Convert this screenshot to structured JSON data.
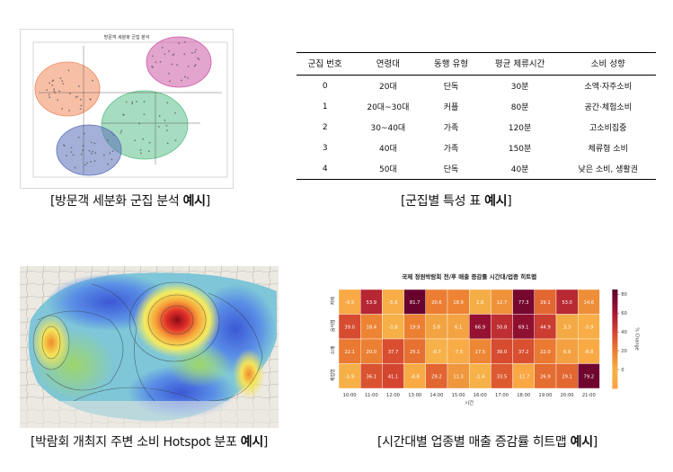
{
  "captions": {
    "scatter": {
      "text": "[방문객 세분화 군집 분석 ",
      "bold": "예시",
      "end": "]"
    },
    "table": {
      "text": "[군집별 특성 표 ",
      "bold": "예시",
      "end": "]"
    },
    "map": {
      "text": "[박람회 개최지 주변 소비 Hotspot 분포 ",
      "bold": "예시",
      "end": "]"
    },
    "heatmap": {
      "text": "[시간대별 업종별 매출 증감률 히트맵 ",
      "bold": "예시",
      "end": "]"
    }
  },
  "scatter_title": "방문객 세분화 군집 분석",
  "cluster_table": {
    "headers": [
      "군집 번호",
      "연령대",
      "동행 유형",
      "평균 체류시간",
      "소비 성향"
    ],
    "rows": [
      [
        "0",
        "20대",
        "단독",
        "30분",
        "소액·자주소비"
      ],
      [
        "1",
        "20대~30대",
        "커플",
        "80분",
        "공간·체험소비"
      ],
      [
        "2",
        "30~40대",
        "가족",
        "120분",
        "고소비집중"
      ],
      [
        "3",
        "40대",
        "가족",
        "150분",
        "체류형 소비"
      ],
      [
        "4",
        "50대",
        "단독",
        "40분",
        "낮은 소비, 생활권"
      ]
    ]
  },
  "chart_data": [
    {
      "type": "scatter",
      "title": "방문객 세분화 군집 분석",
      "clusters": [
        {
          "name": "orange",
          "color": "#f08a5d"
        },
        {
          "name": "green",
          "color": "#5cc08a"
        },
        {
          "name": "blue",
          "color": "#5a6fb8"
        },
        {
          "name": "pink",
          "color": "#cc5aa6"
        }
      ]
    },
    {
      "type": "heatmap",
      "title": "국제 정원박람회 전/후 매출 증감률 시간대/업종 히트맵",
      "xlabel": "시간",
      "ylabel": "",
      "colorbar_label": "% Change",
      "colorbar_ticks": [
        80,
        60,
        40,
        20,
        0
      ],
      "vmin": -20,
      "vmax": 85,
      "x": [
        "10:00",
        "11:00",
        "12:00",
        "13:00",
        "14:00",
        "15:00",
        "16:00",
        "17:00",
        "18:00",
        "19:00",
        "20:00",
        "21:00"
      ],
      "y": [
        "카페",
        "음식점",
        "소매",
        "체험형"
      ],
      "values": [
        [
          -9.5,
          53.9,
          -5.8,
          81.7,
          20.6,
          18.9,
          1.6,
          12.7,
          77.3,
          29.1,
          53.0,
          14.6
        ],
        [
          39.0,
          18.4,
          -3.8,
          19.9,
          5.8,
          6.1,
          66.9,
          50.8,
          69.1,
          44.9,
          3.3,
          -5.9
        ],
        [
          22.1,
          20.0,
          37.7,
          25.1,
          -0.7,
          -7.5,
          17.5,
          39.0,
          37.2,
          22.0,
          6.9,
          -8.8
        ],
        [
          -1.9,
          36.1,
          41.1,
          -8.8,
          29.2,
          11.3,
          -1.4,
          33.5,
          -11.7,
          26.9,
          29.1,
          79.2
        ]
      ]
    }
  ]
}
